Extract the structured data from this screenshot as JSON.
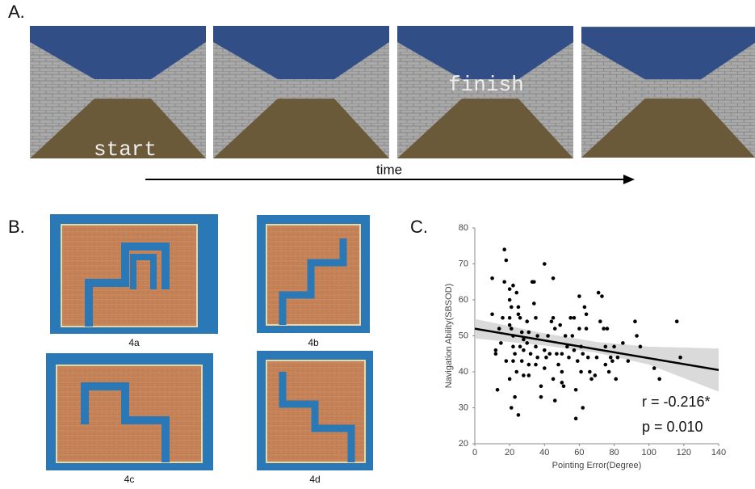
{
  "panels": {
    "a": "A.",
    "b": "B.",
    "c": "C."
  },
  "screens": {
    "start": "start",
    "finish": "finish",
    "time": "time"
  },
  "mazes": [
    "4a",
    "4b",
    "4c",
    "4d"
  ],
  "chart_data": {
    "type": "scatter",
    "x_label": "Pointing Error(Degree)",
    "y_label": "Navigation Ability(SBSOD)",
    "xlim": [
      0,
      140
    ],
    "ylim": [
      20,
      80
    ],
    "xticks": [
      0,
      20,
      40,
      60,
      80,
      100,
      120,
      140
    ],
    "yticks": [
      20,
      30,
      40,
      50,
      60,
      70,
      80
    ],
    "color": "#000000",
    "x": [
      10,
      10,
      12,
      12,
      13,
      15,
      17,
      18,
      17,
      20,
      20,
      21,
      20,
      21,
      22,
      22,
      23,
      22,
      20,
      21,
      23,
      24,
      25,
      25,
      26,
      27,
      28,
      28,
      27,
      28,
      25,
      22,
      24,
      20,
      30,
      31,
      30,
      32,
      31,
      31,
      33,
      34,
      34,
      35,
      36,
      35,
      36,
      35,
      38,
      38,
      40,
      40,
      41,
      40,
      42,
      43,
      44,
      45,
      45,
      46,
      45,
      46,
      47,
      48,
      49,
      50,
      50,
      50,
      51,
      52,
      53,
      54,
      55,
      56,
      57,
      57,
      58,
      58,
      59,
      60,
      60,
      61,
      62,
      61,
      62,
      63,
      64,
      64,
      65,
      66,
      67,
      69,
      70,
      71,
      72,
      73,
      74,
      75,
      75,
      76,
      77,
      78,
      79,
      80,
      81,
      82,
      85,
      88,
      92,
      93,
      95,
      103,
      106,
      116,
      118,
      14,
      16,
      18,
      26
    ],
    "values": [
      66,
      56,
      45,
      46,
      35,
      48,
      74,
      71,
      65,
      63,
      60,
      58,
      55,
      52,
      50,
      47,
      45,
      43,
      38,
      30,
      33,
      40,
      58,
      56,
      55,
      51,
      49,
      46,
      43,
      39,
      28,
      64,
      62,
      53,
      54,
      51,
      48,
      45,
      42,
      39,
      65,
      65,
      59,
      55,
      50,
      47,
      44,
      42,
      33,
      36,
      70,
      46,
      44,
      41,
      50,
      45,
      54,
      66,
      55,
      52,
      38,
      32,
      45,
      42,
      53,
      45,
      40,
      37,
      36,
      50,
      47,
      44,
      55,
      50,
      46,
      55,
      35,
      27,
      43,
      61,
      52,
      47,
      45,
      40,
      30,
      58,
      56,
      52,
      44,
      40,
      38,
      39,
      44,
      62,
      54,
      61,
      52,
      47,
      42,
      52,
      40,
      44,
      43,
      47,
      38,
      44,
      48,
      43,
      54,
      50,
      47,
      41,
      38,
      54,
      44,
      52,
      55,
      43,
      47
    ],
    "fit": {
      "x": [
        0,
        140
      ],
      "values": [
        52,
        40.5
      ]
    },
    "band": {
      "x": [
        0,
        40,
        70,
        100,
        140
      ],
      "upper": [
        54.7,
        50.7,
        48.3,
        47,
        46.5
      ],
      "lower": [
        49.3,
        47.3,
        45.3,
        42,
        34.5
      ]
    },
    "annotations": [
      "r = -0.216*",
      "p = 0.010"
    ]
  }
}
